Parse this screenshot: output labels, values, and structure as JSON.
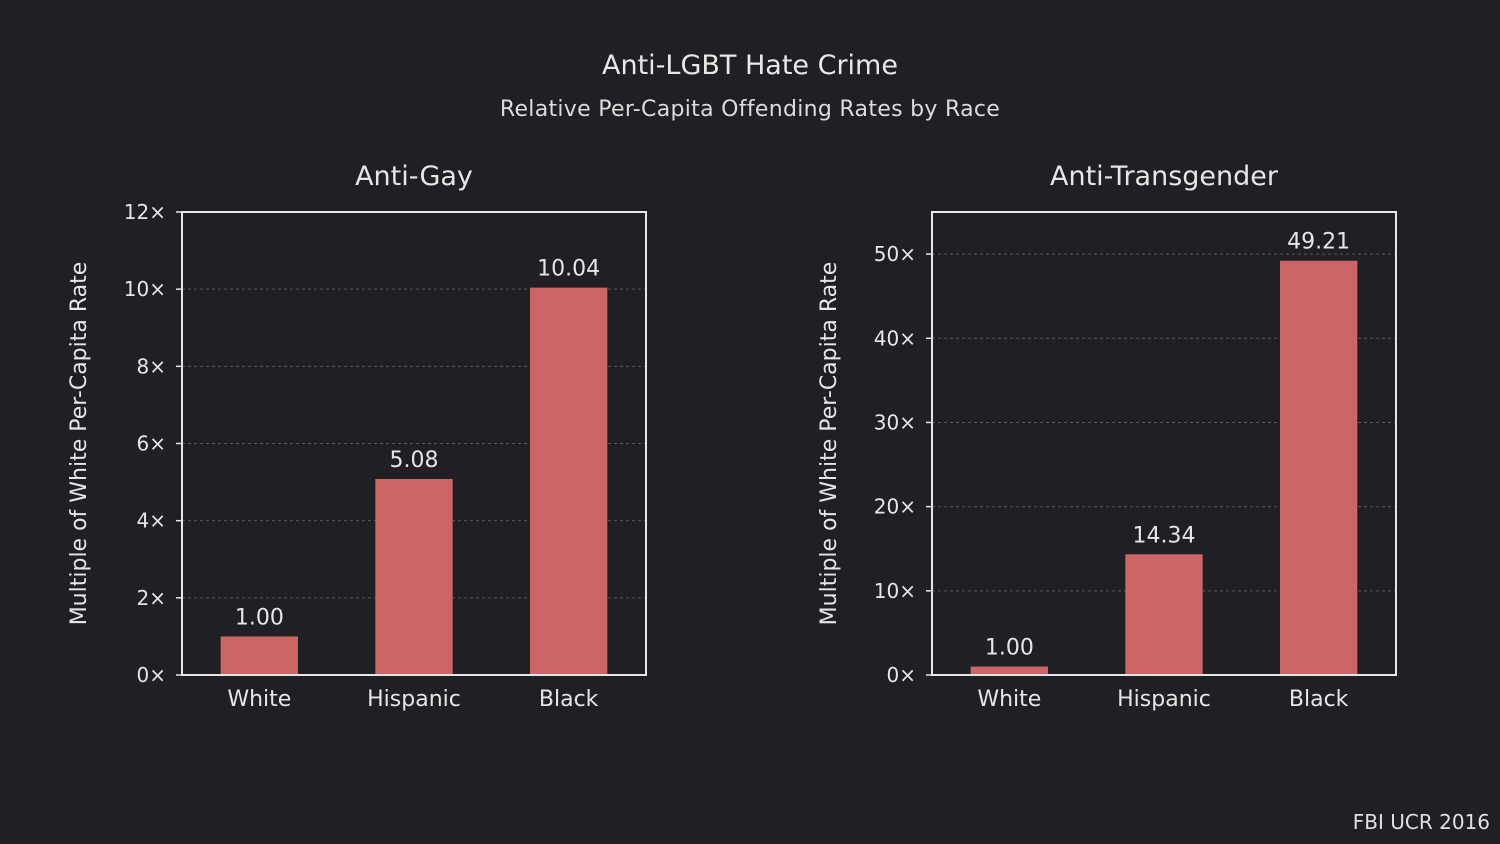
{
  "title": "Anti-LGBT Hate Crime",
  "subtitle": "Relative Per-Capita Offending Rates by Race",
  "source": "FBI UCR 2016",
  "colors": {
    "background": "#1f2023",
    "bar": "#cd6566",
    "axis": "#e6e6e6",
    "grid": "#55575c",
    "text": "#e6e6e6"
  },
  "chart_data": [
    {
      "type": "bar",
      "title": "Anti-Gay",
      "ylabel": "Multiple of White Per-Capita Rate",
      "xlabel": "",
      "categories": [
        "White",
        "Hispanic",
        "Black"
      ],
      "values": [
        1.0,
        5.08,
        10.04
      ],
      "value_labels": [
        "1.00",
        "5.08",
        "10.04"
      ],
      "ylim": [
        0,
        12
      ],
      "yticks": [
        0,
        2,
        4,
        6,
        8,
        10,
        12
      ],
      "ytick_labels": [
        "0×",
        "2×",
        "4×",
        "6×",
        "8×",
        "10×",
        "12×"
      ],
      "grid": true
    },
    {
      "type": "bar",
      "title": "Anti-Transgender",
      "ylabel": "Multiple of White Per-Capita Rate",
      "xlabel": "",
      "categories": [
        "White",
        "Hispanic",
        "Black"
      ],
      "values": [
        1.0,
        14.34,
        49.21
      ],
      "value_labels": [
        "1.00",
        "14.34",
        "49.21"
      ],
      "ylim": [
        0,
        55
      ],
      "yticks": [
        0,
        10,
        20,
        30,
        40,
        50
      ],
      "ytick_labels": [
        "0×",
        "10×",
        "20×",
        "30×",
        "40×",
        "50×"
      ],
      "grid": true
    }
  ]
}
